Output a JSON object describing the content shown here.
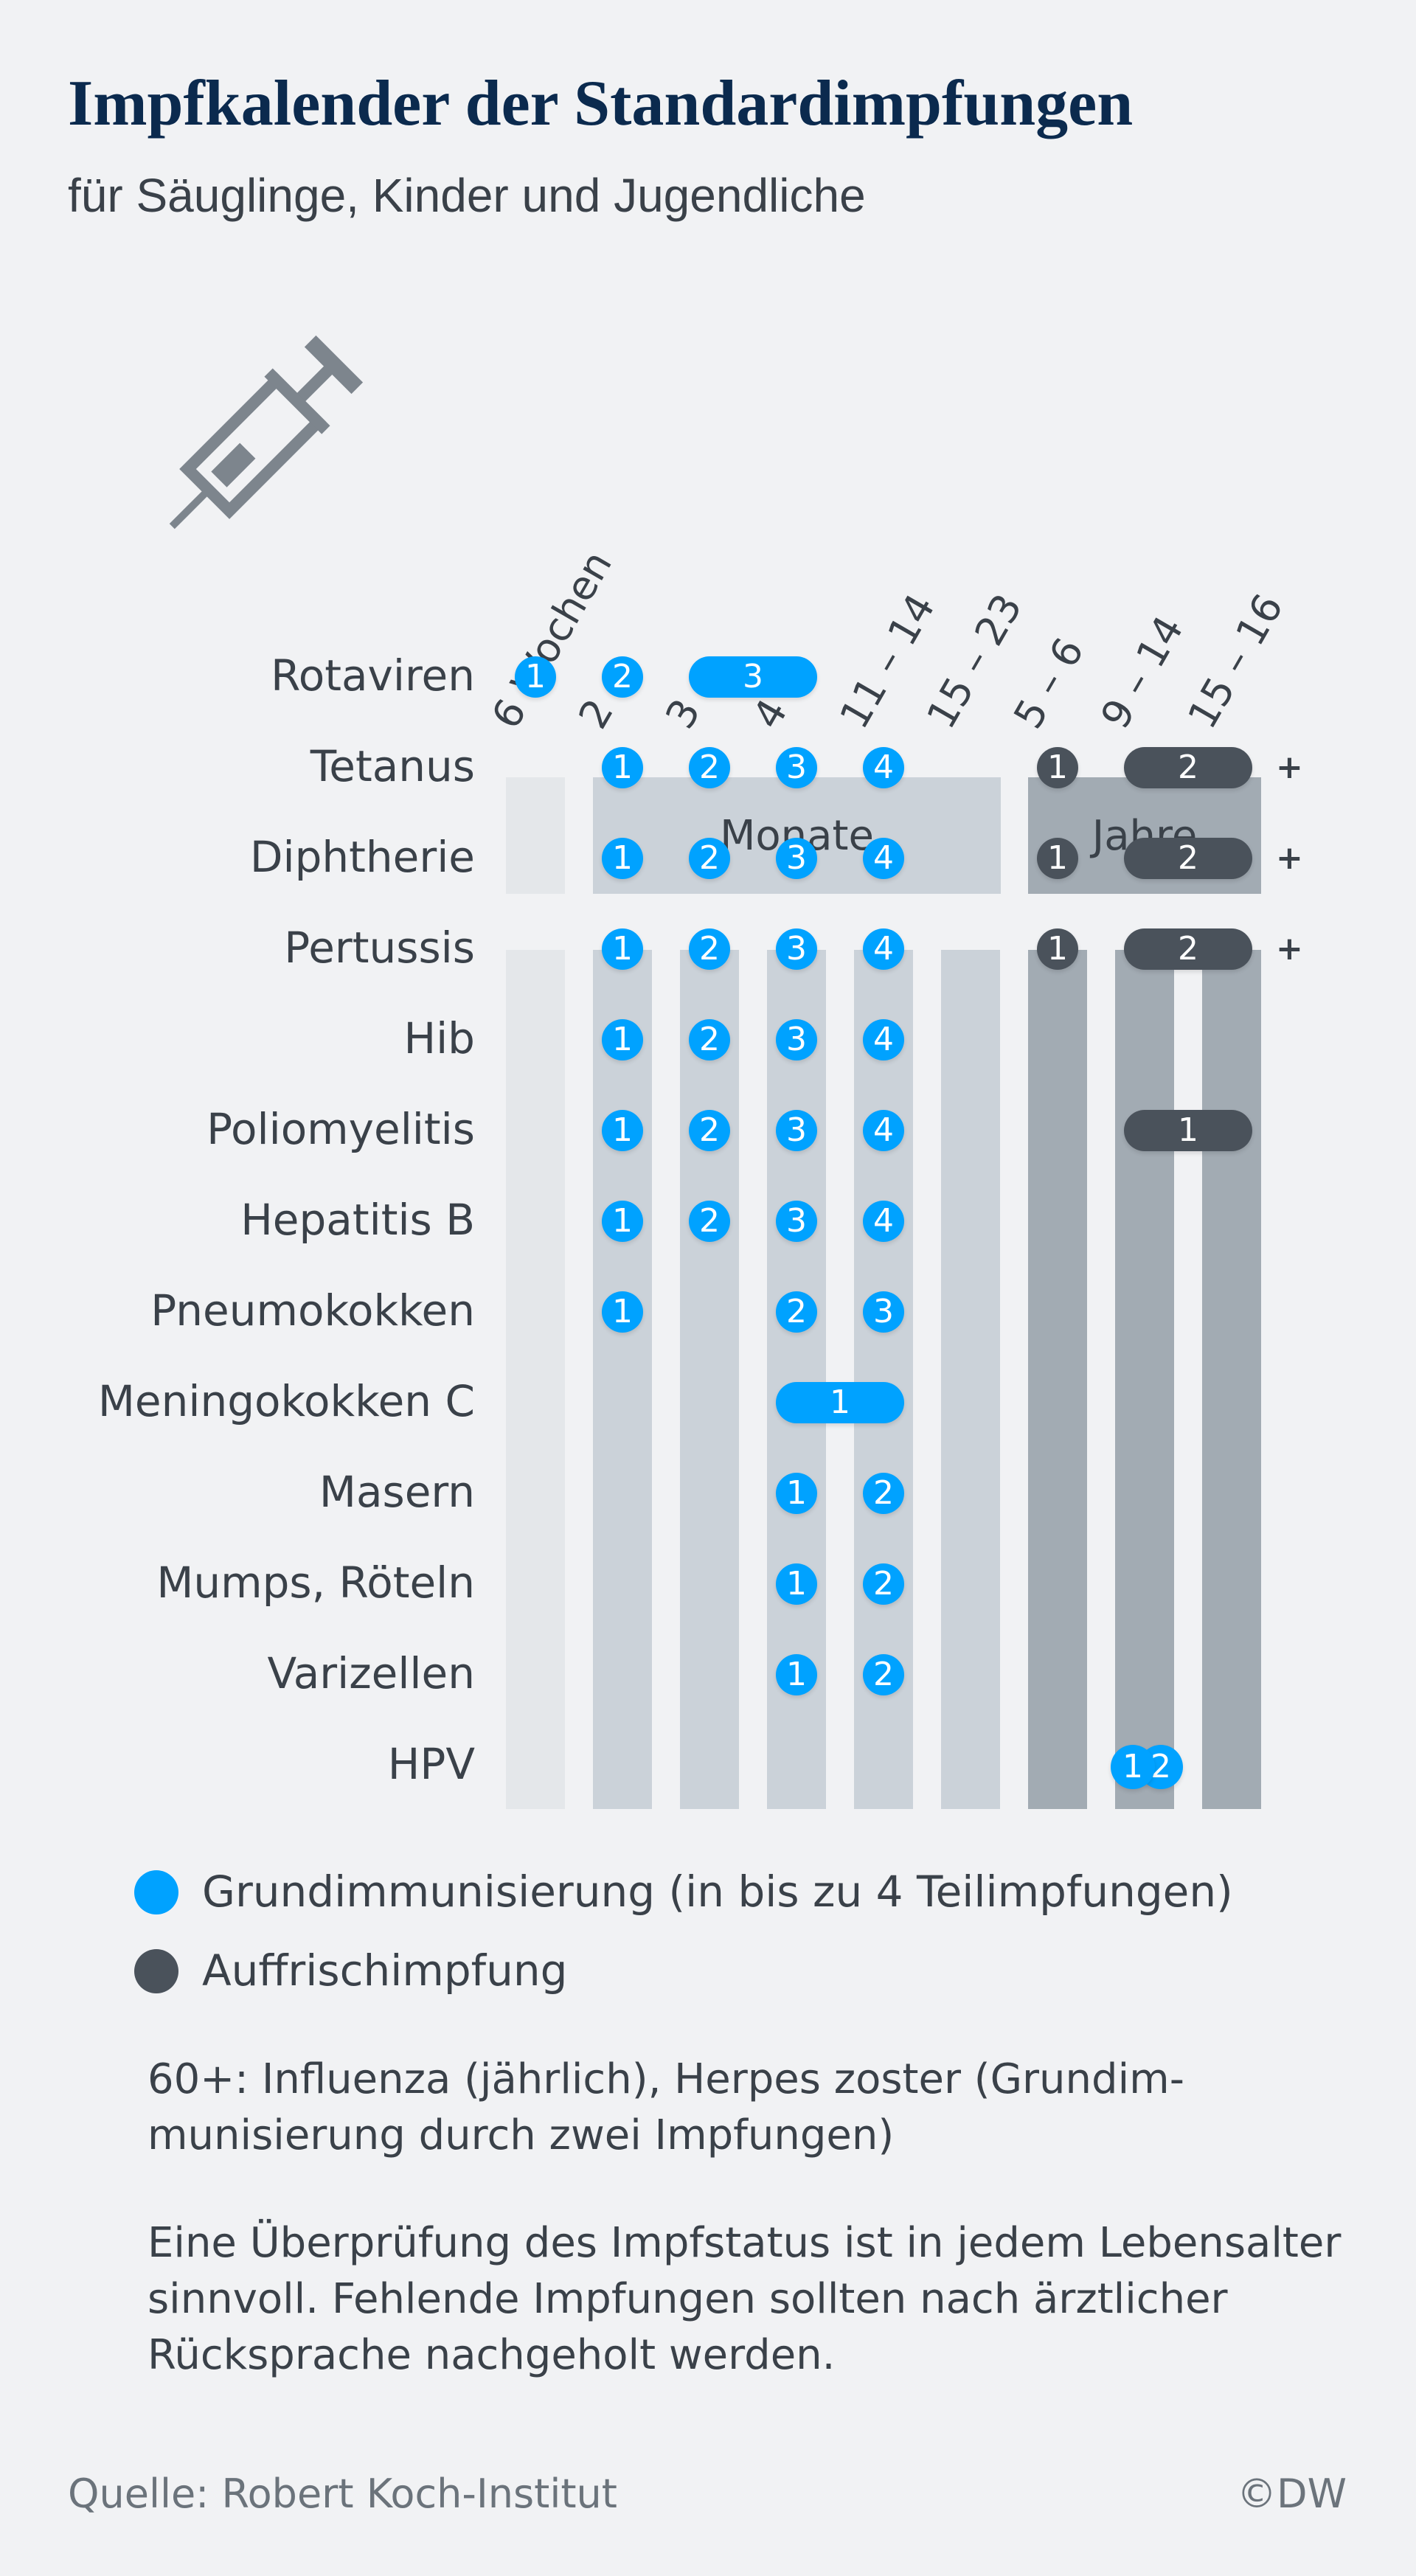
{
  "title": "Impfkalender der Standardimpfungen",
  "subtitle": "für Säuglinge, Kinder und Jugendliche",
  "icon": "syringe-icon",
  "colors": {
    "primary": "#00a2ff",
    "booster": "#4a525b",
    "weeks_col": "#e4e7ea",
    "months_col": "#cbd2d9",
    "years_col": "#a2abb3"
  },
  "columns": [
    "6 Wochen",
    "2",
    "3",
    "4",
    "11 – 14",
    "15 – 23",
    "5 – 6",
    "9 – 14",
    "15 – 16"
  ],
  "groups": {
    "months": "Monate",
    "years": "Jahre"
  },
  "rows": [
    {
      "label": "Rotaviren",
      "doses": [
        {
          "n": "1",
          "from": 0,
          "to": 0,
          "type": "primary"
        },
        {
          "n": "2",
          "from": 1,
          "to": 1,
          "type": "primary"
        },
        {
          "n": "3",
          "from": 2,
          "to": 3,
          "type": "primary"
        }
      ]
    },
    {
      "label": "Tetanus",
      "plus": "+",
      "doses": [
        {
          "n": "1",
          "from": 1,
          "to": 1,
          "type": "primary"
        },
        {
          "n": "2",
          "from": 2,
          "to": 2,
          "type": "primary"
        },
        {
          "n": "3",
          "from": 3,
          "to": 3,
          "type": "primary"
        },
        {
          "n": "4",
          "from": 4,
          "to": 4,
          "type": "primary"
        },
        {
          "n": "1",
          "from": 6,
          "to": 6,
          "type": "booster"
        },
        {
          "n": "2",
          "from": 7,
          "to": 8,
          "type": "booster"
        }
      ]
    },
    {
      "label": "Diphtherie",
      "plus": "+",
      "doses": [
        {
          "n": "1",
          "from": 1,
          "to": 1,
          "type": "primary"
        },
        {
          "n": "2",
          "from": 2,
          "to": 2,
          "type": "primary"
        },
        {
          "n": "3",
          "from": 3,
          "to": 3,
          "type": "primary"
        },
        {
          "n": "4",
          "from": 4,
          "to": 4,
          "type": "primary"
        },
        {
          "n": "1",
          "from": 6,
          "to": 6,
          "type": "booster"
        },
        {
          "n": "2",
          "from": 7,
          "to": 8,
          "type": "booster"
        }
      ]
    },
    {
      "label": "Pertussis",
      "plus": "+",
      "doses": [
        {
          "n": "1",
          "from": 1,
          "to": 1,
          "type": "primary"
        },
        {
          "n": "2",
          "from": 2,
          "to": 2,
          "type": "primary"
        },
        {
          "n": "3",
          "from": 3,
          "to": 3,
          "type": "primary"
        },
        {
          "n": "4",
          "from": 4,
          "to": 4,
          "type": "primary"
        },
        {
          "n": "1",
          "from": 6,
          "to": 6,
          "type": "booster"
        },
        {
          "n": "2",
          "from": 7,
          "to": 8,
          "type": "booster"
        }
      ]
    },
    {
      "label": "Hib",
      "doses": [
        {
          "n": "1",
          "from": 1,
          "to": 1,
          "type": "primary"
        },
        {
          "n": "2",
          "from": 2,
          "to": 2,
          "type": "primary"
        },
        {
          "n": "3",
          "from": 3,
          "to": 3,
          "type": "primary"
        },
        {
          "n": "4",
          "from": 4,
          "to": 4,
          "type": "primary"
        }
      ]
    },
    {
      "label": "Poliomyelitis",
      "doses": [
        {
          "n": "1",
          "from": 1,
          "to": 1,
          "type": "primary"
        },
        {
          "n": "2",
          "from": 2,
          "to": 2,
          "type": "primary"
        },
        {
          "n": "3",
          "from": 3,
          "to": 3,
          "type": "primary"
        },
        {
          "n": "4",
          "from": 4,
          "to": 4,
          "type": "primary"
        },
        {
          "n": "1",
          "from": 7,
          "to": 8,
          "type": "booster"
        }
      ]
    },
    {
      "label": "Hepatitis B",
      "doses": [
        {
          "n": "1",
          "from": 1,
          "to": 1,
          "type": "primary"
        },
        {
          "n": "2",
          "from": 2,
          "to": 2,
          "type": "primary"
        },
        {
          "n": "3",
          "from": 3,
          "to": 3,
          "type": "primary"
        },
        {
          "n": "4",
          "from": 4,
          "to": 4,
          "type": "primary"
        }
      ]
    },
    {
      "label": "Pneumokokken",
      "doses": [
        {
          "n": "1",
          "from": 1,
          "to": 1,
          "type": "primary"
        },
        {
          "n": "2",
          "from": 3,
          "to": 3,
          "type": "primary"
        },
        {
          "n": "3",
          "from": 4,
          "to": 4,
          "type": "primary"
        }
      ]
    },
    {
      "label": "Meningokokken C",
      "doses": [
        {
          "n": "1",
          "from": 3,
          "to": 4,
          "type": "primary"
        }
      ]
    },
    {
      "label": "Masern",
      "doses": [
        {
          "n": "1",
          "from": 3,
          "to": 3,
          "type": "primary"
        },
        {
          "n": "2",
          "from": 4,
          "to": 4,
          "type": "primary"
        }
      ]
    },
    {
      "label": "Mumps, Röteln",
      "doses": [
        {
          "n": "1",
          "from": 3,
          "to": 3,
          "type": "primary"
        },
        {
          "n": "2",
          "from": 4,
          "to": 4,
          "type": "primary"
        }
      ]
    },
    {
      "label": "Varizellen",
      "doses": [
        {
          "n": "1",
          "from": 3,
          "to": 3,
          "type": "primary"
        },
        {
          "n": "2",
          "from": 4,
          "to": 4,
          "type": "primary"
        }
      ]
    },
    {
      "label": "HPV",
      "doses": [
        {
          "n": "1",
          "from": 7,
          "to": 7,
          "type": "primary"
        },
        {
          "n": "2",
          "from": 7,
          "to": 7,
          "type": "primary"
        }
      ]
    }
  ],
  "legend": {
    "primary": "Grundimmunisierung (in bis zu 4 Teilimpfungen)",
    "booster": "Auffrischimpfung"
  },
  "notes": [
    "60+: Influenza (jährlich), Herpes zoster (Grundim-munisierung durch zwei Impfungen)",
    "Eine Überprüfung des Impfstatus ist in jedem Lebensalter sinnvoll. Fehlende Impfungen sollten nach ärztlicher Rücksprache nachgeholt werden."
  ],
  "source": "Quelle: Robert Koch-Institut",
  "credit": "©DW"
}
